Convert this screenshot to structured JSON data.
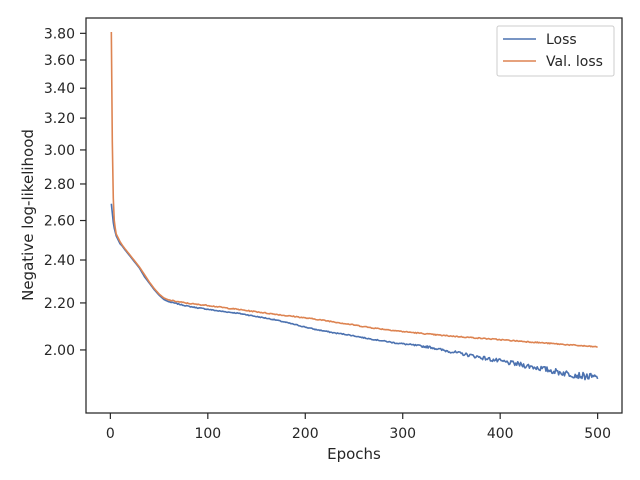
{
  "chart_data": {
    "type": "line",
    "title": "",
    "xlabel": "Epochs",
    "ylabel": "Negative log-likelihood",
    "xlim": [
      -25,
      525
    ],
    "ylim": [
      1.76,
      3.92
    ],
    "yscale": "log",
    "xticks": [
      0,
      100,
      200,
      300,
      400,
      500
    ],
    "xtick_labels": [
      "0",
      "100",
      "200",
      "300",
      "400",
      "500"
    ],
    "yticks": [
      2.0,
      2.2,
      2.4,
      2.6,
      2.8,
      3.0,
      3.2,
      3.4,
      3.6,
      3.8
    ],
    "ytick_labels": [
      "2.00",
      "2.20",
      "2.40",
      "2.60",
      "2.80",
      "3.00",
      "3.20",
      "3.40",
      "3.60",
      "3.80"
    ],
    "grid": false,
    "legend": {
      "position": "top-right",
      "entries": [
        "Loss",
        "Val. loss"
      ]
    },
    "series": [
      {
        "name": "Loss",
        "color": "#4c72b0",
        "x": [
          1,
          2,
          3,
          4,
          5,
          6,
          8,
          10,
          12,
          15,
          20,
          25,
          30,
          35,
          40,
          45,
          50,
          55,
          60,
          70,
          80,
          90,
          100,
          110,
          120,
          130,
          140,
          150,
          160,
          170,
          180,
          190,
          200,
          210,
          220,
          230,
          240,
          250,
          260,
          270,
          280,
          290,
          300,
          310,
          320,
          330,
          340,
          350,
          360,
          370,
          380,
          390,
          400,
          410,
          420,
          430,
          440,
          450,
          460,
          470,
          480,
          490,
          500
        ],
        "y": [
          2.69,
          2.64,
          2.59,
          2.56,
          2.54,
          2.52,
          2.5,
          2.48,
          2.47,
          2.45,
          2.42,
          2.39,
          2.36,
          2.32,
          2.29,
          2.26,
          2.235,
          2.215,
          2.205,
          2.195,
          2.185,
          2.178,
          2.172,
          2.165,
          2.16,
          2.155,
          2.148,
          2.14,
          2.133,
          2.125,
          2.115,
          2.105,
          2.095,
          2.085,
          2.078,
          2.07,
          2.065,
          2.058,
          2.05,
          2.043,
          2.037,
          2.03,
          2.025,
          2.02,
          2.015,
          2.01,
          2.0,
          1.993,
          1.985,
          1.978,
          1.97,
          1.962,
          1.955,
          1.948,
          1.942,
          1.935,
          1.928,
          1.92,
          1.912,
          1.906,
          1.9,
          1.895,
          1.89
        ]
      },
      {
        "name": "Val. loss",
        "color": "#dd8452",
        "x": [
          1,
          2,
          3,
          4,
          5,
          6,
          8,
          10,
          12,
          15,
          20,
          25,
          30,
          35,
          40,
          45,
          50,
          55,
          60,
          70,
          80,
          90,
          100,
          110,
          120,
          130,
          140,
          150,
          160,
          170,
          180,
          190,
          200,
          210,
          220,
          230,
          240,
          250,
          260,
          270,
          280,
          290,
          300,
          310,
          320,
          330,
          340,
          350,
          360,
          370,
          380,
          390,
          400,
          410,
          420,
          430,
          440,
          450,
          460,
          470,
          480,
          490,
          500
        ],
        "y": [
          3.81,
          3.05,
          2.72,
          2.6,
          2.56,
          2.53,
          2.51,
          2.49,
          2.475,
          2.455,
          2.425,
          2.395,
          2.365,
          2.33,
          2.295,
          2.265,
          2.24,
          2.222,
          2.213,
          2.205,
          2.198,
          2.193,
          2.189,
          2.183,
          2.177,
          2.172,
          2.166,
          2.161,
          2.155,
          2.15,
          2.144,
          2.14,
          2.134,
          2.129,
          2.123,
          2.117,
          2.11,
          2.104,
          2.097,
          2.091,
          2.086,
          2.081,
          2.076,
          2.072,
          2.068,
          2.064,
          2.06,
          2.057,
          2.054,
          2.051,
          2.048,
          2.045,
          2.042,
          2.039,
          2.036,
          2.033,
          2.03,
          2.027,
          2.024,
          2.021,
          2.018,
          2.015,
          2.012
        ]
      }
    ]
  }
}
